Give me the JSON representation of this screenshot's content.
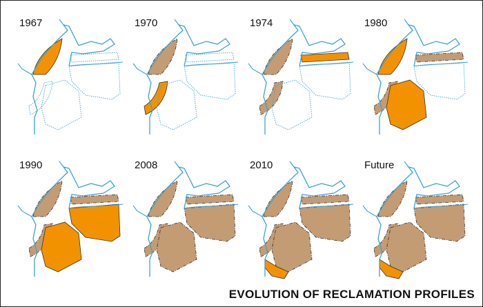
{
  "panels": [
    {
      "label": "1967"
    },
    {
      "label": "1970"
    },
    {
      "label": "1974"
    },
    {
      "label": "1980"
    },
    {
      "label": "1990"
    },
    {
      "label": "2008"
    },
    {
      "label": "2010"
    },
    {
      "label": "Future"
    }
  ],
  "title": "EVOLUTION OF RECLAMATION PROFILES"
}
